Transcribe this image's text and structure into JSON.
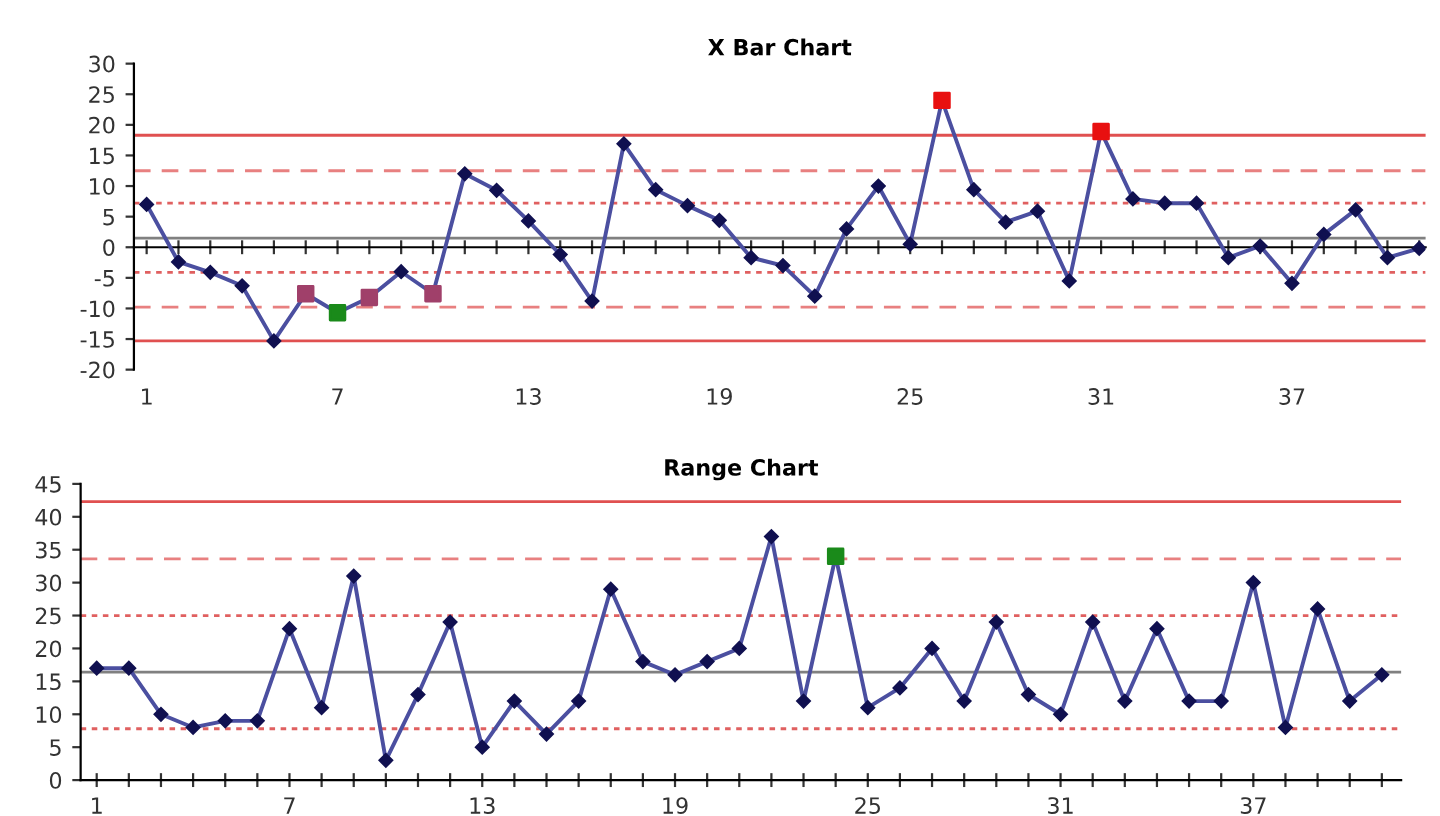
{
  "chart_data": [
    {
      "type": "line",
      "title": "X Bar Chart",
      "grid": false,
      "x": [
        1,
        2,
        3,
        4,
        5,
        6,
        7,
        8,
        9,
        10,
        11,
        12,
        13,
        14,
        15,
        16,
        17,
        18,
        19,
        20,
        21,
        22,
        23,
        24,
        25,
        26,
        27,
        28,
        29,
        30,
        31,
        32,
        33,
        34,
        35,
        36,
        37,
        38,
        39,
        40,
        41
      ],
      "series": [
        {
          "color": "#4b4fa0",
          "marker": "diamond",
          "line_style": "solid",
          "values": [
            7,
            -2.4,
            -4.1,
            -6.3,
            -15.3,
            -7.6,
            -10.7,
            -8.2,
            -4,
            -7.6,
            12,
            9.3,
            4.3,
            -1.2,
            -8.8,
            16.9,
            9.4,
            6.8,
            4.4,
            -1.7,
            -3,
            -8,
            3,
            10,
            0.5,
            24,
            9.4,
            4.1,
            5.9,
            -5.5,
            18.9,
            7.9,
            7.2,
            7.2,
            -1.7,
            0.2,
            -5.9,
            2.1,
            6.1,
            -1.7,
            -0.2
          ]
        },
        {
          "type": "scatter",
          "marker": "square",
          "color": "#a0406a",
          "x": [
            6,
            8,
            10
          ],
          "values": [
            -7.6,
            -8.2,
            -7.6
          ]
        },
        {
          "type": "scatter",
          "marker": "square",
          "color": "#1a8a1a",
          "x": [
            7
          ],
          "values": [
            -10.7
          ]
        },
        {
          "type": "scatter",
          "marker": "square",
          "color": "#e81010",
          "x": [
            26,
            31
          ],
          "values": [
            24,
            18.9
          ]
        }
      ],
      "xlim": [
        0.6,
        41.2
      ],
      "ylim": [
        -20,
        30
      ],
      "yticks": [
        -20,
        -15,
        -10,
        -5,
        0,
        5,
        10,
        15,
        20,
        25,
        30
      ],
      "xticks": [
        1,
        {
          "value": 2,
          "label": null
        },
        {
          "value": 3,
          "label": null
        },
        {
          "value": 4,
          "label": null
        },
        {
          "value": 5,
          "label": null
        },
        {
          "value": 6,
          "label": null
        },
        7,
        {
          "value": 8,
          "label": null
        },
        {
          "value": 9,
          "label": null
        },
        {
          "value": 10,
          "label": null
        },
        {
          "value": 11,
          "label": null
        },
        {
          "value": 12,
          "label": null
        },
        13,
        {
          "value": 14,
          "label": null
        },
        {
          "value": 15,
          "label": null
        },
        {
          "value": 16,
          "label": null
        },
        {
          "value": 17,
          "label": null
        },
        {
          "value": 18,
          "label": null
        },
        19,
        {
          "value": 20,
          "label": null
        },
        {
          "value": 21,
          "label": null
        },
        {
          "value": 22,
          "label": null
        },
        {
          "value": 23,
          "label": null
        },
        {
          "value": 24,
          "label": null
        },
        25,
        {
          "value": 26,
          "label": null
        },
        {
          "value": 27,
          "label": null
        },
        {
          "value": 28,
          "label": null
        },
        {
          "value": 29,
          "label": null
        },
        {
          "value": 30,
          "label": null
        },
        31,
        {
          "value": 32,
          "label": null
        },
        {
          "value": 33,
          "label": null
        },
        {
          "value": 34,
          "label": null
        },
        {
          "value": 35,
          "label": null
        },
        {
          "value": 36,
          "label": null
        },
        37,
        {
          "value": 38,
          "label": null
        },
        {
          "value": 39,
          "label": null
        },
        {
          "value": 40,
          "label": null
        },
        {
          "value": 41,
          "label": null
        }
      ],
      "ref_lines": [
        {
          "axis": "y",
          "value": 18.3,
          "color": "#e05050",
          "line_style": "solid"
        },
        {
          "axis": "y",
          "value": 12.5,
          "color": "#e88080",
          "line_style": "dashed"
        },
        {
          "axis": "y",
          "value": 7.2,
          "color": "#e06060",
          "line_style": "dotted"
        },
        {
          "axis": "y",
          "value": 1.5,
          "color": "#808080",
          "line_style": "solid"
        },
        {
          "axis": "y",
          "value": -4.1,
          "color": "#e06060",
          "line_style": "dotted"
        },
        {
          "axis": "y",
          "value": -9.8,
          "color": "#e88080",
          "line_style": "dashed"
        },
        {
          "axis": "y",
          "value": -15.3,
          "color": "#e05050",
          "line_style": "solid"
        }
      ]
    },
    {
      "type": "line",
      "title": "Range Chart",
      "grid": false,
      "x": [
        1,
        2,
        3,
        4,
        5,
        6,
        7,
        8,
        9,
        10,
        11,
        12,
        13,
        14,
        15,
        16,
        17,
        18,
        19,
        20,
        21,
        22,
        23,
        24,
        25,
        26,
        27,
        28,
        29,
        30,
        31,
        32,
        33,
        34,
        35,
        36,
        37,
        38,
        39,
        40,
        41
      ],
      "series": [
        {
          "color": "#4b4fa0",
          "marker": "diamond",
          "line_style": "solid",
          "values": [
            17,
            17,
            10,
            8,
            9,
            9,
            23,
            11,
            31,
            3,
            13,
            24,
            5,
            12,
            7,
            12,
            29,
            18,
            16,
            18,
            20,
            37,
            12,
            34,
            11,
            14,
            20,
            12,
            24,
            13,
            10,
            24,
            12,
            23,
            12,
            12,
            30,
            8,
            26,
            12,
            16
          ]
        },
        {
          "type": "scatter",
          "marker": "square",
          "color": "#1a8a1a",
          "x": [
            24
          ],
          "values": [
            34
          ]
        }
      ],
      "xlim": [
        0.5,
        41.6
      ],
      "ylim": [
        0,
        45
      ],
      "yticks": [
        0,
        5,
        10,
        15,
        20,
        25,
        30,
        35,
        40,
        45
      ],
      "xticks": [
        1,
        {
          "value": 2,
          "label": null
        },
        {
          "value": 3,
          "label": null
        },
        {
          "value": 4,
          "label": null
        },
        {
          "value": 5,
          "label": null
        },
        {
          "value": 6,
          "label": null
        },
        7,
        {
          "value": 8,
          "label": null
        },
        {
          "value": 9,
          "label": null
        },
        {
          "value": 10,
          "label": null
        },
        {
          "value": 11,
          "label": null
        },
        {
          "value": 12,
          "label": null
        },
        13,
        {
          "value": 14,
          "label": null
        },
        {
          "value": 15,
          "label": null
        },
        {
          "value": 16,
          "label": null
        },
        {
          "value": 17,
          "label": null
        },
        {
          "value": 18,
          "label": null
        },
        19,
        {
          "value": 20,
          "label": null
        },
        {
          "value": 21,
          "label": null
        },
        {
          "value": 22,
          "label": null
        },
        {
          "value": 23,
          "label": null
        },
        {
          "value": 24,
          "label": null
        },
        25,
        {
          "value": 26,
          "label": null
        },
        {
          "value": 27,
          "label": null
        },
        {
          "value": 28,
          "label": null
        },
        {
          "value": 29,
          "label": null
        },
        {
          "value": 30,
          "label": null
        },
        31,
        {
          "value": 32,
          "label": null
        },
        {
          "value": 33,
          "label": null
        },
        {
          "value": 34,
          "label": null
        },
        {
          "value": 35,
          "label": null
        },
        {
          "value": 36,
          "label": null
        },
        37,
        {
          "value": 38,
          "label": null
        },
        {
          "value": 39,
          "label": null
        },
        {
          "value": 40,
          "label": null
        },
        {
          "value": 41,
          "label": null
        }
      ],
      "ref_lines": [
        {
          "axis": "y",
          "value": 42.3,
          "color": "#e05050",
          "line_style": "solid"
        },
        {
          "axis": "y",
          "value": 33.6,
          "color": "#e88080",
          "line_style": "dashed"
        },
        {
          "axis": "y",
          "value": 25,
          "color": "#e06060",
          "line_style": "dotted"
        },
        {
          "axis": "y",
          "value": 16.4,
          "color": "#808080",
          "line_style": "solid"
        },
        {
          "axis": "y",
          "value": 7.8,
          "color": "#e06060",
          "line_style": "dotted"
        }
      ]
    }
  ]
}
